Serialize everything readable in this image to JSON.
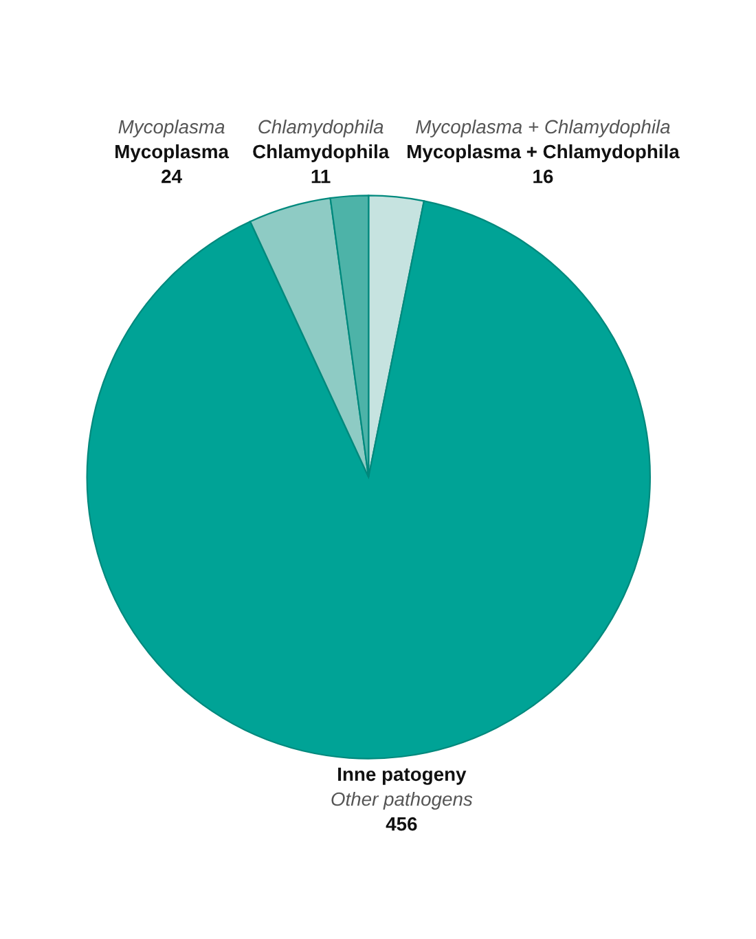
{
  "chart_data": {
    "type": "pie",
    "categories": [
      "Mycoplasma + Chlamydophila",
      "Inne patogeny",
      "Mycoplasma",
      "Chlamydophila"
    ],
    "values": [
      16,
      456,
      24,
      11
    ],
    "colors": [
      "#c6e3e0",
      "#00a396",
      "#8ecbc4",
      "#4db3a8"
    ],
    "annotations": [
      "Mycoplasma + Chlamydophila",
      "Other pathogens",
      "Mycoplasma",
      "Chlamydophila"
    ],
    "data_labels": true
  }
}
